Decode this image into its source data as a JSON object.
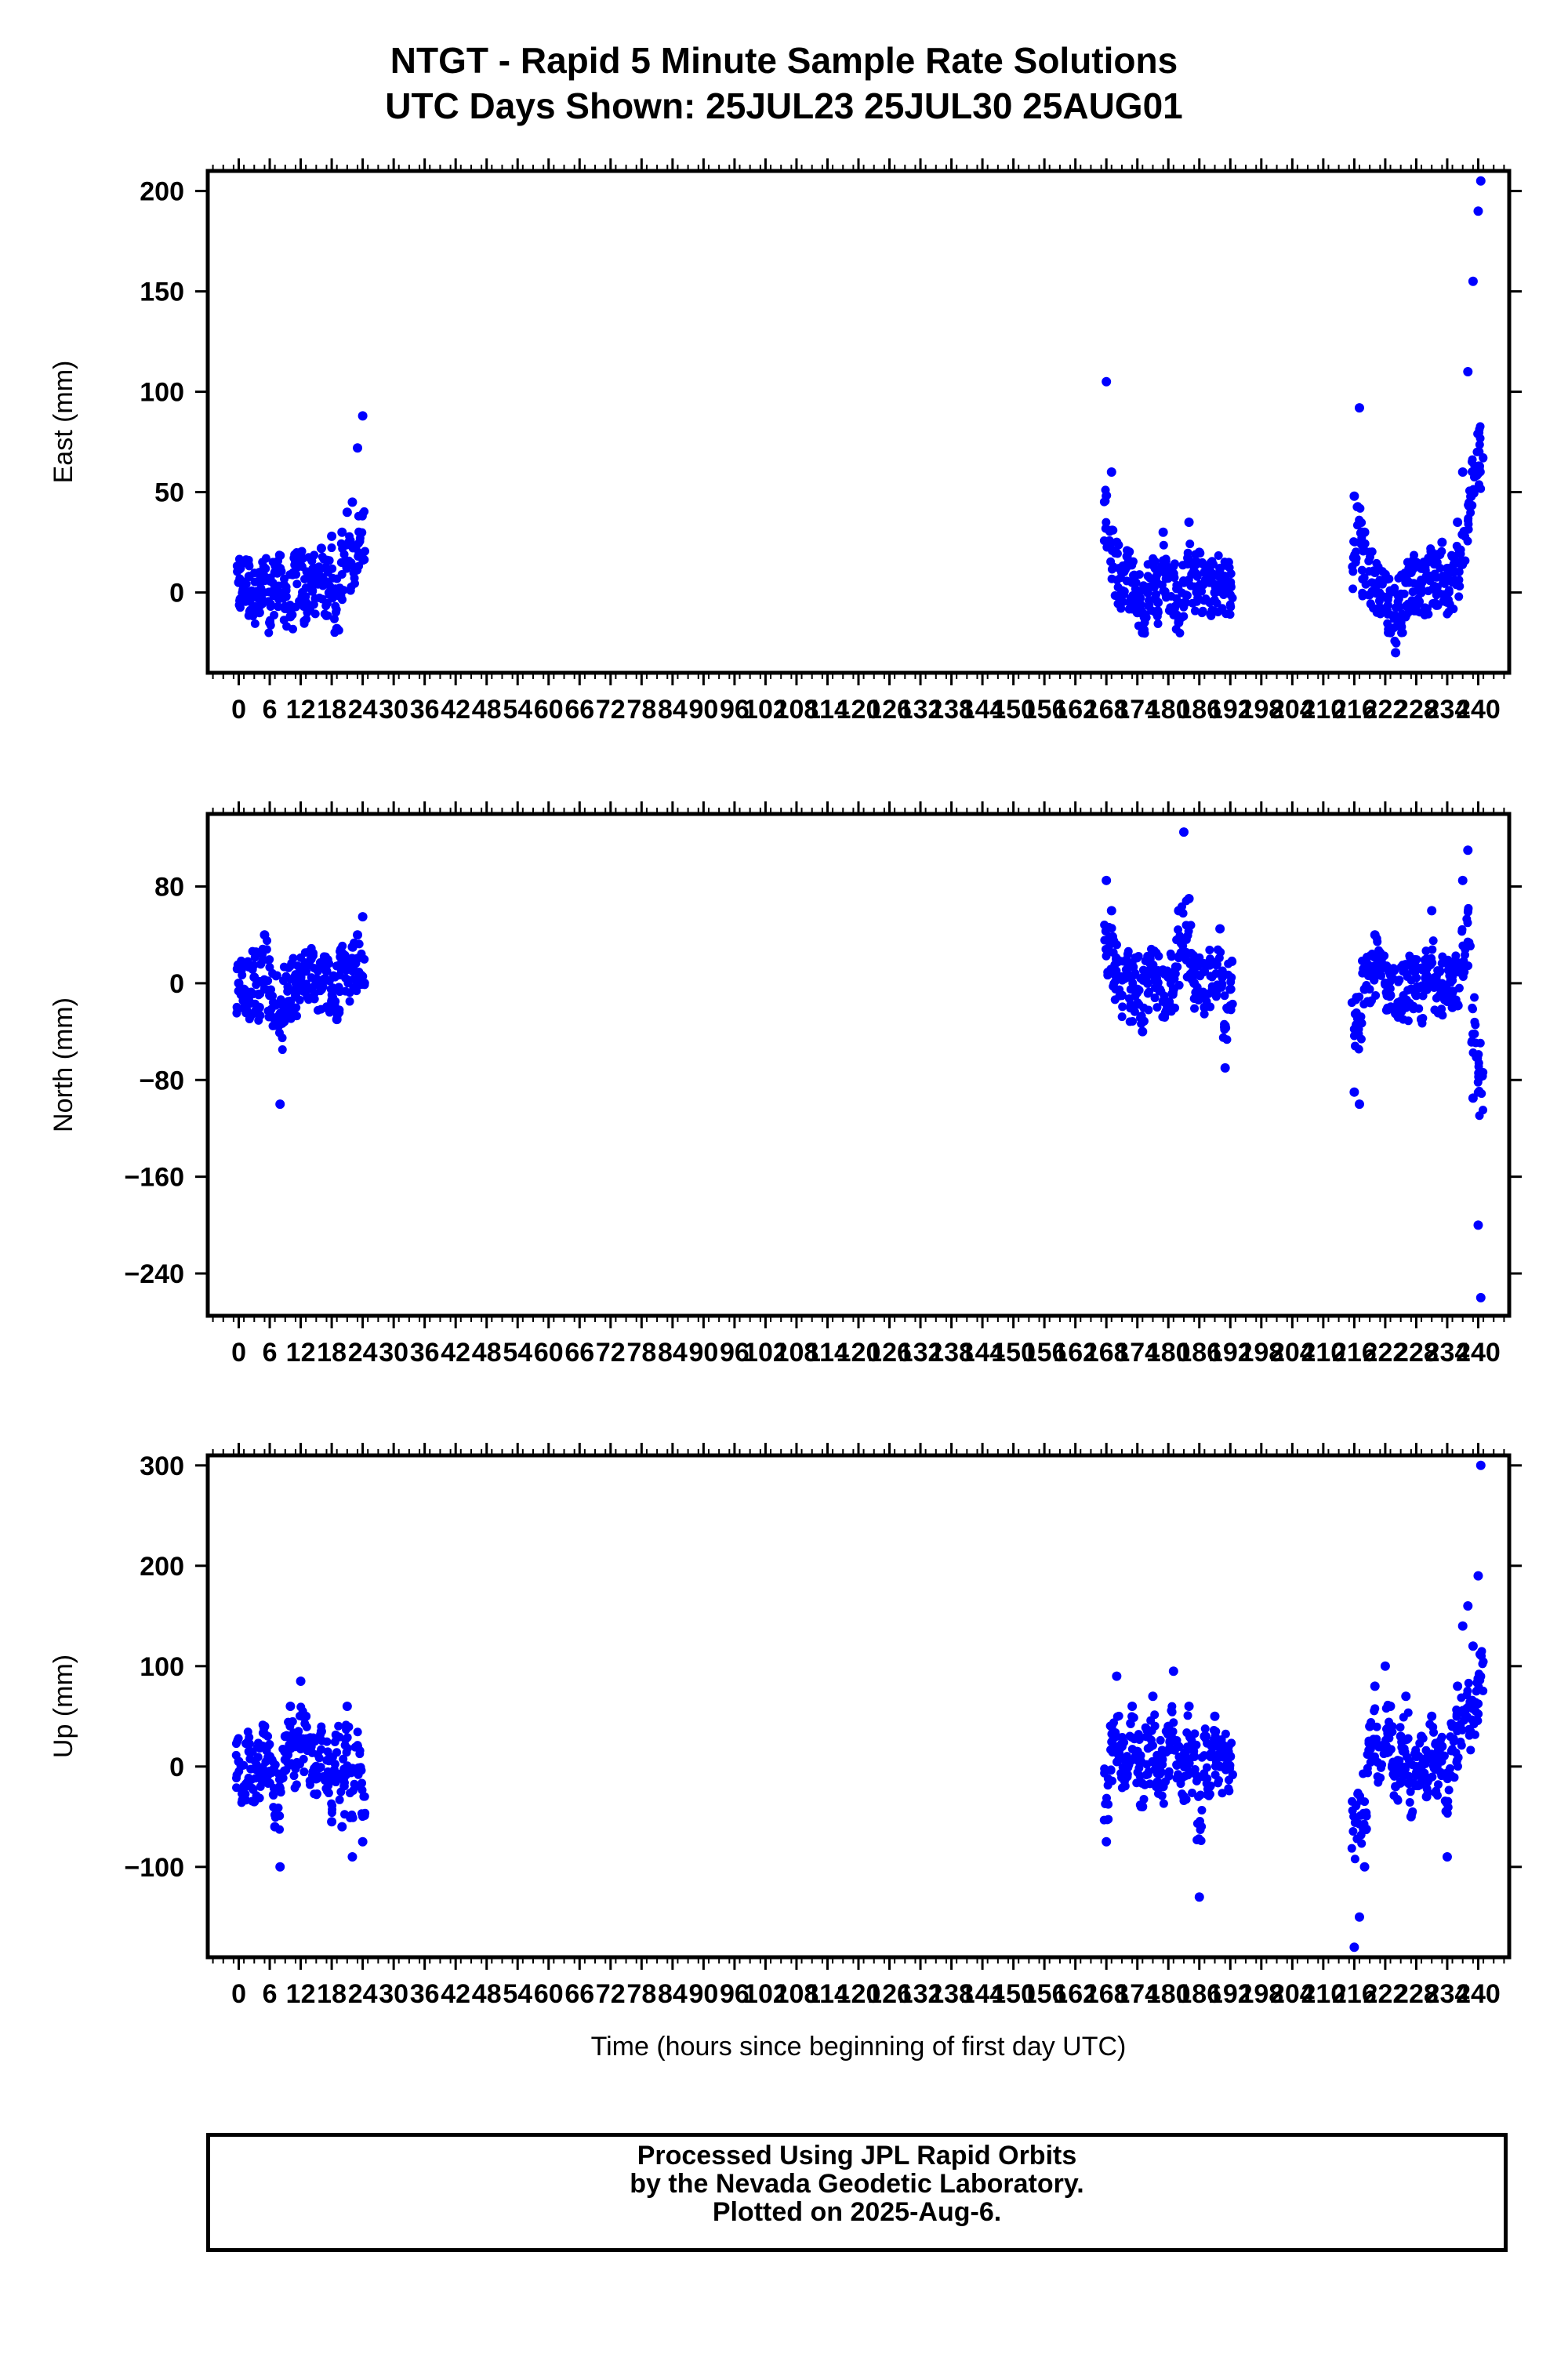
{
  "title": {
    "line1": "NTGT - Rapid 5 Minute Sample Rate Solutions",
    "line2": "UTC Days Shown:  25JUL23 25JUL30 25AUG01"
  },
  "footer": {
    "line1": "Processed Using JPL Rapid Orbits",
    "line2": "by the Nevada Geodetic Laboratory.",
    "line3": "Plotted on 2025-Aug-6."
  },
  "point_color": "#0000ff",
  "chart_data": [
    {
      "type": "scatter",
      "ylabel": "East (mm)",
      "xlabel": "",
      "xlim": [
        -6,
        246
      ],
      "ylim": [
        -40,
        210
      ],
      "xticks": [
        0,
        6,
        12,
        18,
        24,
        30,
        36,
        42,
        48,
        54,
        60,
        66,
        72,
        78,
        84,
        90,
        96,
        102,
        108,
        114,
        120,
        126,
        132,
        138,
        144,
        150,
        156,
        162,
        168,
        174,
        180,
        186,
        192,
        198,
        204,
        210,
        216,
        222,
        228,
        234,
        240
      ],
      "yticks": [
        0,
        50,
        100,
        150,
        200
      ],
      "ytick_labels": [
        "0",
        "50",
        "100",
        "150",
        200
      ],
      "x": [
        0,
        1,
        2,
        3,
        4,
        5,
        6,
        7,
        8,
        9,
        10,
        11,
        12,
        13,
        14,
        15,
        16,
        17,
        18,
        19,
        20,
        21,
        22,
        23,
        24,
        168,
        169,
        170,
        171,
        172,
        173,
        174,
        175,
        176,
        177,
        178,
        179,
        180,
        181,
        182,
        183,
        184,
        185,
        186,
        187,
        188,
        189,
        190,
        191,
        192,
        216,
        217,
        218,
        219,
        220,
        221,
        222,
        223,
        224,
        225,
        226,
        227,
        228,
        229,
        230,
        231,
        232,
        233,
        234,
        235,
        236,
        237,
        238,
        239,
        240,
        240.5
      ],
      "y": [
        5,
        15,
        8,
        -2,
        -10,
        6,
        -15,
        10,
        12,
        -8,
        -12,
        15,
        20,
        -5,
        8,
        12,
        22,
        5,
        28,
        -18,
        30,
        40,
        45,
        72,
        88,
        105,
        60,
        25,
        10,
        18,
        5,
        -10,
        -20,
        0,
        15,
        -5,
        30,
        12,
        8,
        -15,
        5,
        35,
        15,
        20,
        10,
        5,
        0,
        12,
        8,
        5,
        48,
        92,
        30,
        20,
        10,
        5,
        -8,
        -20,
        -30,
        -15,
        5,
        10,
        15,
        12,
        8,
        20,
        15,
        25,
        12,
        18,
        35,
        60,
        110,
        155,
        190,
        205
      ]
    },
    {
      "type": "scatter",
      "ylabel": "North (mm)",
      "xlabel": "",
      "xlim": [
        -6,
        246
      ],
      "ylim": [
        -275,
        140
      ],
      "xticks": [
        0,
        6,
        12,
        18,
        24,
        30,
        36,
        42,
        48,
        54,
        60,
        66,
        72,
        78,
        84,
        90,
        96,
        102,
        108,
        114,
        120,
        126,
        132,
        138,
        144,
        150,
        156,
        162,
        168,
        174,
        180,
        186,
        192,
        198,
        204,
        210,
        216,
        222,
        228,
        234,
        240
      ],
      "yticks": [
        80,
        0,
        -80,
        -160,
        -240
      ],
      "ytick_labels": [
        "80",
        "0",
        "−80",
        "−160",
        "−240"
      ],
      "x": [
        0,
        1,
        2,
        3,
        4,
        5,
        6,
        7,
        8,
        9,
        10,
        11,
        12,
        13,
        14,
        15,
        16,
        17,
        18,
        19,
        20,
        21,
        22,
        23,
        24,
        168,
        169,
        170,
        171,
        172,
        173,
        174,
        175,
        176,
        177,
        178,
        179,
        180,
        181,
        182,
        183,
        184,
        185,
        186,
        187,
        188,
        189,
        190,
        191,
        192,
        216,
        217,
        218,
        219,
        220,
        221,
        222,
        223,
        224,
        225,
        226,
        227,
        228,
        229,
        230,
        231,
        232,
        233,
        234,
        235,
        236,
        237,
        238,
        239,
        240,
        240.5
      ],
      "y": [
        0,
        -5,
        -15,
        5,
        -20,
        40,
        -10,
        -30,
        -100,
        -25,
        -15,
        -10,
        5,
        10,
        20,
        0,
        -5,
        10,
        -15,
        -30,
        25,
        15,
        30,
        40,
        55,
        85,
        60,
        20,
        -10,
        5,
        -20,
        -5,
        -40,
        0,
        15,
        10,
        -15,
        5,
        -5,
        60,
        125,
        70,
        0,
        -10,
        -20,
        15,
        -5,
        45,
        -70,
        -5,
        -90,
        -100,
        -5,
        10,
        40,
        25,
        0,
        -10,
        -25,
        -15,
        -20,
        -5,
        -10,
        -30,
        20,
        60,
        0,
        -5,
        -15,
        -20,
        10,
        85,
        110,
        -95,
        -200,
        -260
      ]
    },
    {
      "type": "scatter",
      "ylabel": "Up (mm)",
      "xlabel": "Time (hours since beginning of first day UTC)",
      "xlim": [
        -6,
        246
      ],
      "ylim": [
        -190,
        310
      ],
      "xticks": [
        0,
        6,
        12,
        18,
        24,
        30,
        36,
        42,
        48,
        54,
        60,
        66,
        72,
        78,
        84,
        90,
        96,
        102,
        108,
        114,
        120,
        126,
        132,
        138,
        144,
        150,
        156,
        162,
        168,
        174,
        180,
        186,
        192,
        198,
        204,
        210,
        216,
        222,
        228,
        234,
        240
      ],
      "yticks": [
        300,
        200,
        100,
        0,
        -100
      ],
      "ytick_labels": [
        "300",
        "200",
        "100",
        "0",
        "−100"
      ],
      "x": [
        0,
        1,
        2,
        3,
        4,
        5,
        6,
        7,
        8,
        9,
        10,
        11,
        12,
        13,
        14,
        15,
        16,
        17,
        18,
        19,
        20,
        21,
        22,
        23,
        24,
        168,
        169,
        170,
        171,
        172,
        173,
        174,
        175,
        176,
        177,
        178,
        179,
        180,
        181,
        182,
        183,
        184,
        185,
        186,
        187,
        188,
        189,
        190,
        191,
        192,
        216,
        217,
        218,
        219,
        220,
        221,
        222,
        223,
        224,
        225,
        226,
        227,
        228,
        229,
        230,
        231,
        232,
        233,
        234,
        235,
        236,
        237,
        238,
        239,
        240,
        240.5
      ],
      "y": [
        5,
        -20,
        15,
        -35,
        -10,
        40,
        10,
        -60,
        -100,
        30,
        60,
        20,
        85,
        50,
        20,
        0,
        35,
        -10,
        -55,
        30,
        -60,
        60,
        -90,
        20,
        -75,
        -75,
        40,
        90,
        20,
        -10,
        60,
        15,
        -40,
        30,
        70,
        0,
        -20,
        40,
        95,
        20,
        -30,
        60,
        10,
        -130,
        30,
        -20,
        50,
        0,
        20,
        10,
        -180,
        -150,
        -100,
        40,
        80,
        20,
        100,
        60,
        -20,
        30,
        70,
        -50,
        10,
        30,
        -30,
        50,
        0,
        20,
        -90,
        40,
        80,
        140,
        160,
        120,
        190,
        300
      ]
    }
  ]
}
